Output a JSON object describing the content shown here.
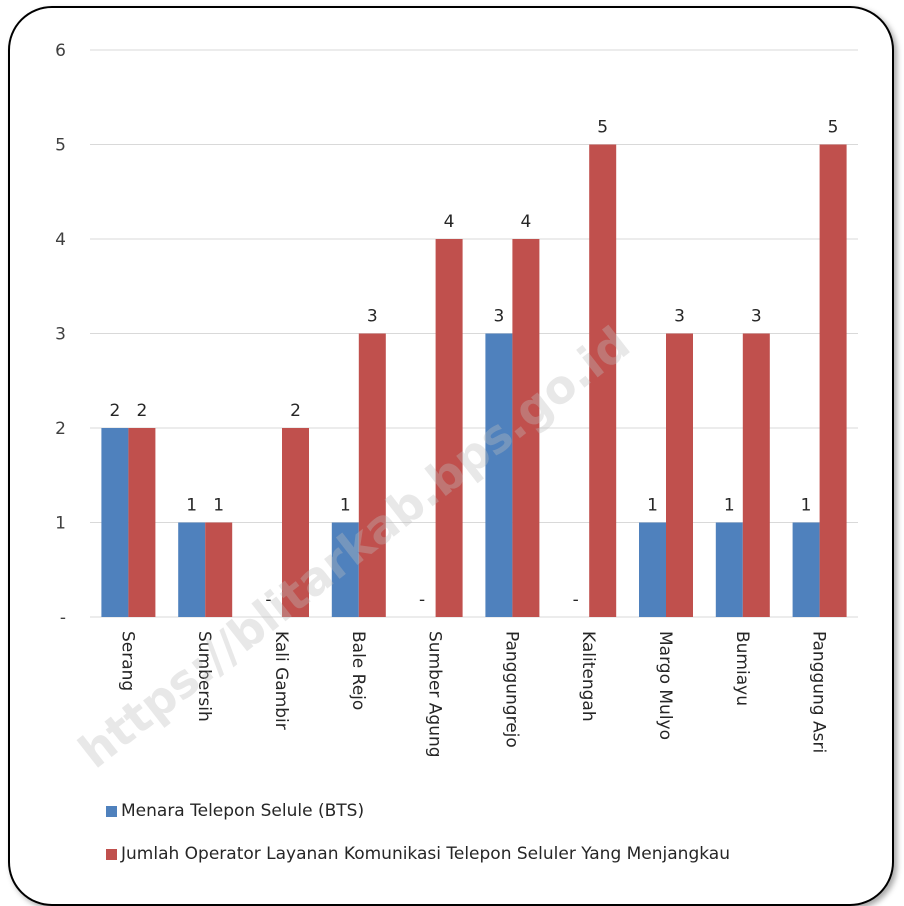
{
  "watermark": "https://blitarkab.bps.go.id",
  "colors": {
    "series1": "#4f81bd",
    "series2": "#c0504d",
    "grid": "#d9d9d9"
  },
  "chart_data": {
    "type": "bar",
    "title": "",
    "xlabel": "",
    "ylabel": "",
    "ylim": [
      0,
      6
    ],
    "yticks": [
      0,
      1,
      2,
      3,
      4,
      5,
      6
    ],
    "ytick_labels": [
      "-",
      "1",
      "2",
      "3",
      "4",
      "5",
      "6"
    ],
    "grid": true,
    "legend_position": "bottom",
    "categories": [
      "Serang",
      "Sumbersih",
      "Kali Gambir",
      "Bale Rejo",
      "Sumber Agung",
      "Panggungrejo",
      "Kalitengah",
      "Margo Mulyo",
      "Bumiayu",
      "Panggung Asri"
    ],
    "series": [
      {
        "name": "Menara Telepon Selule (BTS)",
        "values": [
          2,
          1,
          0,
          1,
          0,
          3,
          0,
          1,
          1,
          1
        ],
        "labels": [
          "2",
          "1",
          "-",
          "1",
          "-",
          "3",
          "-",
          "1",
          "1",
          "1"
        ]
      },
      {
        "name": "Jumlah Operator Layanan Komunikasi Telepon Seluler Yang Menjangkau",
        "values": [
          2,
          1,
          2,
          3,
          4,
          4,
          5,
          3,
          3,
          5
        ],
        "labels": [
          "2",
          "1",
          "2",
          "3",
          "4",
          "4",
          "5",
          "3",
          "3",
          "5"
        ]
      }
    ]
  }
}
